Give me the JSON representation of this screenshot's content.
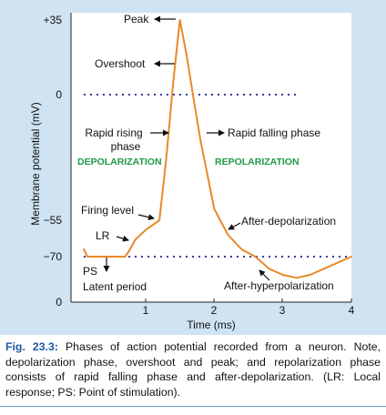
{
  "chart_data": {
    "type": "line",
    "title": "",
    "xlabel": "Time (ms)",
    "ylabel": "Membrane potential (mV)",
    "x_ticks": [
      "1",
      "2",
      "3",
      "4"
    ],
    "y_ticks": [
      "+35",
      "0",
      "−55",
      "−70"
    ],
    "origin_label": "0",
    "xlim": [
      0,
      4
    ],
    "ylim": [
      -85,
      35
    ],
    "series": [
      {
        "x": [
          0.1,
          0.15,
          0.2,
          0.7,
          0.75,
          0.85,
          1.0,
          1.2,
          1.3,
          1.4,
          1.5,
          1.6,
          1.7,
          1.8,
          1.9,
          2.0,
          2.2,
          2.4,
          2.6,
          2.8,
          3.0,
          3.2,
          3.4,
          3.6,
          3.8,
          4.0
        ],
        "y": [
          -67,
          -70,
          -70,
          -70,
          -68,
          -63,
          -59,
          -55,
          -28,
          5,
          35,
          18,
          -2,
          -20,
          -35,
          -50,
          -61,
          -67,
          -70,
          -74,
          -76,
          -77,
          -76,
          -74,
          -72,
          -70
        ]
      }
    ],
    "reference_lines": [
      {
        "y": 0,
        "style": "dotted"
      },
      {
        "y": -70,
        "style": "dotted"
      }
    ],
    "annotations": [
      {
        "text": "Peak"
      },
      {
        "text": "Overshoot"
      },
      {
        "text": "Rapid rising"
      },
      {
        "text": "phase"
      },
      {
        "text": "Rapid falling phase"
      },
      {
        "text": "DEPOLARIZATION"
      },
      {
        "text": "REPOLARIZATION"
      },
      {
        "text": "Firing level"
      },
      {
        "text": "LR"
      },
      {
        "text": "After-depolarization"
      },
      {
        "text": "PS"
      },
      {
        "text": "Latent period"
      },
      {
        "text": "After-hyperpolarization"
      }
    ]
  },
  "caption": {
    "label": "Fig. 23.3:",
    "text": " Phases of action potential recorded from a neuron. Note, depolarization phase, overshoot and peak; and repolarization phase consists of rapid falling phase and after-depolarization. (LR: Local response; PS: Point of stimulation)."
  },
  "colors": {
    "panel_background": "#cfe3f2",
    "plot_background": "#ffffff",
    "curve": "#e8892a",
    "dotted_lines": "#3a3aa8",
    "phase_labels": "#1f9a45",
    "caption_label": "#1c5aa6"
  }
}
